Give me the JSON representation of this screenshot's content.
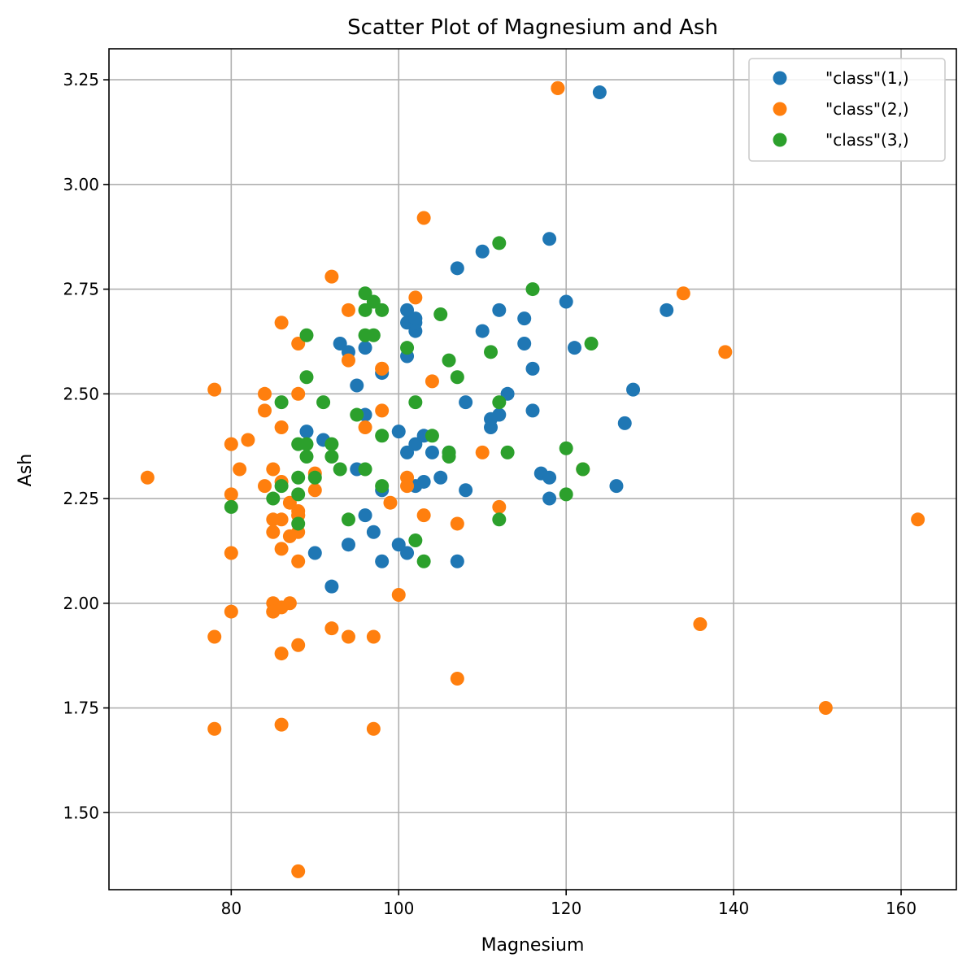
{
  "chart_data": {
    "type": "scatter",
    "title": "Scatter Plot of Magnesium and Ash",
    "xlabel": "Magnesium",
    "ylabel": "Ash",
    "xlim": [
      65.4,
      166.6
    ],
    "ylim": [
      1.316,
      3.324
    ],
    "xticks": [
      80,
      100,
      120,
      140,
      160
    ],
    "xtick_labels": [
      "80",
      "100",
      "120",
      "140",
      "160"
    ],
    "yticks": [
      1.5,
      1.75,
      2.0,
      2.25,
      2.5,
      2.75,
      3.0,
      3.25
    ],
    "ytick_labels": [
      "1.50",
      "1.75",
      "2.00",
      "2.25",
      "2.50",
      "2.75",
      "3.00",
      "3.25"
    ],
    "grid": true,
    "legend_position": "top-right",
    "series": [
      {
        "name": "\"class\"(1,)",
        "color": "#1f77b4",
        "points": [
          [
            127,
            2.43
          ],
          [
            100,
            2.14
          ],
          [
            101,
            2.67
          ],
          [
            113,
            2.5
          ],
          [
            118,
            2.87
          ],
          [
            112,
            2.45
          ],
          [
            96,
            2.45
          ],
          [
            121,
            2.61
          ],
          [
            97,
            2.17
          ],
          [
            98,
            2.27
          ],
          [
            105,
            2.3
          ],
          [
            95,
            2.32
          ],
          [
            89,
            2.41
          ],
          [
            91,
            2.39
          ],
          [
            102,
            2.38
          ],
          [
            112,
            2.7
          ],
          [
            120,
            2.72
          ],
          [
            115,
            2.62
          ],
          [
            108,
            2.48
          ],
          [
            116,
            2.56
          ],
          [
            126,
            2.28
          ],
          [
            102,
            2.65
          ],
          [
            101,
            2.36
          ],
          [
            95,
            2.52
          ],
          [
            96,
            2.61
          ],
          [
            124,
            3.22
          ],
          [
            93,
            2.62
          ],
          [
            94,
            2.14
          ],
          [
            107,
            2.8
          ],
          [
            96,
            2.21
          ],
          [
            101,
            2.7
          ],
          [
            106,
            2.36
          ],
          [
            104,
            2.36
          ],
          [
            132,
            2.7
          ],
          [
            110,
            2.65
          ],
          [
            117,
            2.31
          ],
          [
            101,
            2.59
          ],
          [
            107,
            2.1
          ],
          [
            111,
            2.44
          ],
          [
            102,
            2.67
          ],
          [
            101,
            2.12
          ],
          [
            92,
            2.04
          ],
          [
            111,
            2.42
          ],
          [
            115,
            2.68
          ],
          [
            118,
            2.25
          ],
          [
            116,
            2.46
          ],
          [
            102,
            2.28
          ],
          [
            103,
            2.4
          ],
          [
            118,
            2.3
          ],
          [
            108,
            2.27
          ],
          [
            98,
            2.1
          ],
          [
            100,
            2.41
          ],
          [
            90,
            2.12
          ],
          [
            128,
            2.51
          ],
          [
            102,
            2.68
          ],
          [
            110,
            2.84
          ],
          [
            98,
            2.55
          ],
          [
            94,
            2.6
          ],
          [
            103,
            2.29
          ]
        ]
      },
      {
        "name": "\"class\"(2,)",
        "color": "#ff7f0e",
        "points": [
          [
            88,
            1.36
          ],
          [
            101,
            2.28
          ],
          [
            100,
            2.02
          ],
          [
            94,
            1.92
          ],
          [
            87,
            2.16
          ],
          [
            104,
            2.53
          ],
          [
            98,
            2.56
          ],
          [
            78,
            1.7
          ],
          [
            78,
            1.92
          ],
          [
            110,
            2.36
          ],
          [
            151,
            1.75
          ],
          [
            103,
            2.21
          ],
          [
            86,
            1.88
          ],
          [
            87,
            2.0
          ],
          [
            139,
            2.6
          ],
          [
            101,
            2.3
          ],
          [
            97,
            1.7
          ],
          [
            86,
            2.42
          ],
          [
            112,
            2.23
          ],
          [
            136,
            1.95
          ],
          [
            122,
            2.32
          ],
          [
            85,
            2.17
          ],
          [
            86,
            2.2
          ],
          [
            78,
            2.51
          ],
          [
            85,
            2.32
          ],
          [
            94,
            2.58
          ],
          [
            99,
            2.24
          ],
          [
            90,
            2.31
          ],
          [
            88,
            2.62
          ],
          [
            84,
            2.46
          ],
          [
            70,
            2.3
          ],
          [
            81,
            2.32
          ],
          [
            88,
            2.1
          ],
          [
            86,
            2.13
          ],
          [
            107,
            1.82
          ],
          [
            134,
            2.74
          ],
          [
            85,
            1.98
          ],
          [
            88,
            2.17
          ],
          [
            84,
            2.28
          ],
          [
            80,
            2.12
          ],
          [
            92,
            1.94
          ],
          [
            94,
            2.7
          ],
          [
            107,
            2.19
          ],
          [
            88,
            2.22
          ],
          [
            103,
            2.92
          ],
          [
            88,
            2.5
          ],
          [
            84,
            2.5
          ],
          [
            85,
            2.2
          ],
          [
            86,
            1.99
          ],
          [
            87,
            2.24
          ],
          [
            96,
            2.42
          ],
          [
            80,
            1.98
          ],
          [
            86,
            2.67
          ],
          [
            86,
            1.71
          ],
          [
            102,
            2.73
          ],
          [
            92,
            2.78
          ],
          [
            80,
            2.38
          ],
          [
            162,
            2.2
          ],
          [
            85,
            2.0
          ],
          [
            119,
            3.23
          ],
          [
            90,
            2.27
          ],
          [
            88,
            1.9
          ],
          [
            82,
            2.39
          ],
          [
            88,
            2.21
          ],
          [
            97,
            1.92
          ],
          [
            98,
            2.46
          ],
          [
            88,
            2.21
          ],
          [
            85,
            1.98
          ],
          [
            86,
            2.29
          ],
          [
            80,
            2.26
          ],
          [
            98,
            2.56
          ],
          [
            119,
            3.23
          ]
        ]
      },
      {
        "name": "\"class\"(3,)",
        "color": "#2ca02c",
        "points": [
          [
            103,
            2.1
          ],
          [
            112,
            2.2
          ],
          [
            123,
            2.62
          ],
          [
            106,
            2.35
          ],
          [
            106,
            2.36
          ],
          [
            98,
            2.4
          ],
          [
            112,
            2.48
          ],
          [
            89,
            2.35
          ],
          [
            111,
            2.6
          ],
          [
            86,
            2.28
          ],
          [
            88,
            2.3
          ],
          [
            96,
            2.32
          ],
          [
            101,
            2.61
          ],
          [
            102,
            2.48
          ],
          [
            92,
            2.35
          ],
          [
            90,
            2.3
          ],
          [
            96,
            2.7
          ],
          [
            92,
            2.38
          ],
          [
            97,
            2.64
          ],
          [
            113,
            2.36
          ],
          [
            122,
            2.32
          ],
          [
            104,
            2.4
          ],
          [
            85,
            2.25
          ],
          [
            89,
            2.38
          ],
          [
            95,
            2.45
          ],
          [
            97,
            2.72
          ],
          [
            98,
            2.7
          ],
          [
            89,
            2.64
          ],
          [
            98,
            2.28
          ],
          [
            107,
            2.54
          ],
          [
            106,
            2.58
          ],
          [
            86,
            2.48
          ],
          [
            91,
            2.48
          ],
          [
            112,
            2.86
          ],
          [
            88,
            2.26
          ],
          [
            80,
            2.23
          ],
          [
            88,
            2.38
          ],
          [
            116,
            2.75
          ],
          [
            89,
            2.54
          ],
          [
            105,
            2.69
          ],
          [
            94,
            2.2
          ],
          [
            96,
            2.64
          ],
          [
            93,
            2.32
          ],
          [
            96,
            2.74
          ],
          [
            120,
            2.26
          ],
          [
            102,
            2.15
          ],
          [
            88,
            2.19
          ],
          [
            120,
            2.37
          ]
        ]
      }
    ]
  }
}
